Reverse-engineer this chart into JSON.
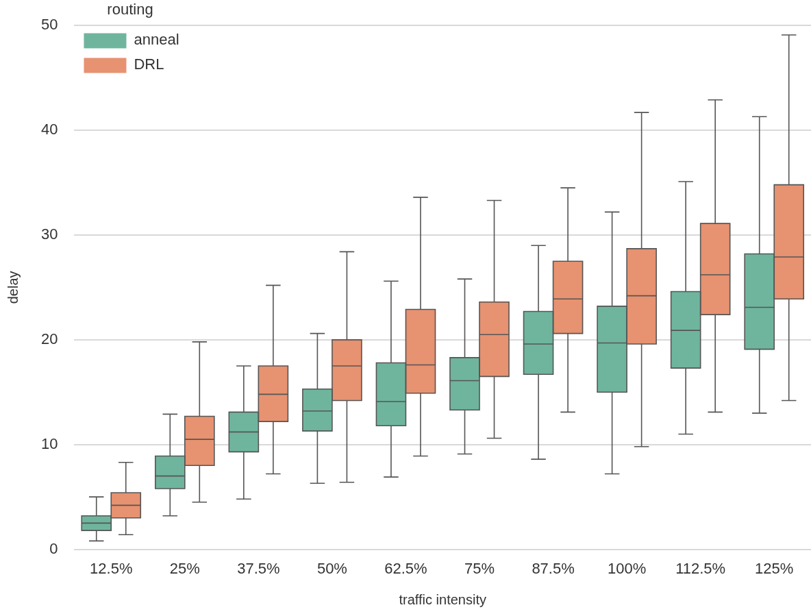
{
  "chart_data": {
    "type": "box",
    "xlabel": "traffic intensity",
    "ylabel": "delay",
    "legend_title": "routing",
    "categories": [
      "12.5%",
      "25%",
      "37.5%",
      "50%",
      "62.5%",
      "75%",
      "87.5%",
      "100%",
      "112.5%",
      "125%"
    ],
    "ylim": [
      0,
      50
    ],
    "yticks": [
      0,
      10,
      20,
      30,
      40,
      50
    ],
    "grid": "y",
    "legend": "top left",
    "series": [
      {
        "name": "anneal",
        "color": "#6fb59e",
        "boxes": [
          {
            "low": 0.8,
            "q1": 1.8,
            "median": 2.5,
            "q3": 3.2,
            "high": 5.0
          },
          {
            "low": 3.2,
            "q1": 5.8,
            "median": 7.0,
            "q3": 8.9,
            "high": 12.9
          },
          {
            "low": 4.8,
            "q1": 9.3,
            "median": 11.2,
            "q3": 13.1,
            "high": 17.5
          },
          {
            "low": 6.3,
            "q1": 11.3,
            "median": 13.2,
            "q3": 15.3,
            "high": 20.6
          },
          {
            "low": 6.9,
            "q1": 11.8,
            "median": 14.1,
            "q3": 17.8,
            "high": 25.6
          },
          {
            "low": 9.1,
            "q1": 13.3,
            "median": 16.1,
            "q3": 18.3,
            "high": 25.8
          },
          {
            "low": 8.6,
            "q1": 16.7,
            "median": 19.6,
            "q3": 22.7,
            "high": 29.0
          },
          {
            "low": 7.2,
            "q1": 15.0,
            "median": 19.7,
            "q3": 23.2,
            "high": 32.2
          },
          {
            "low": 11.0,
            "q1": 17.3,
            "median": 20.9,
            "q3": 24.6,
            "high": 35.1
          },
          {
            "low": 13.0,
            "q1": 19.1,
            "median": 23.1,
            "q3": 28.2,
            "high": 41.3
          }
        ]
      },
      {
        "name": "DRL",
        "color": "#e79271",
        "boxes": [
          {
            "low": 1.4,
            "q1": 3.0,
            "median": 4.2,
            "q3": 5.4,
            "high": 8.3
          },
          {
            "low": 4.5,
            "q1": 8.0,
            "median": 10.5,
            "q3": 12.7,
            "high": 19.8
          },
          {
            "low": 7.2,
            "q1": 12.2,
            "median": 14.8,
            "q3": 17.5,
            "high": 25.2
          },
          {
            "low": 6.4,
            "q1": 14.2,
            "median": 17.5,
            "q3": 20.0,
            "high": 28.4
          },
          {
            "low": 8.9,
            "q1": 14.9,
            "median": 17.6,
            "q3": 22.9,
            "high": 33.6
          },
          {
            "low": 10.6,
            "q1": 16.5,
            "median": 20.5,
            "q3": 23.6,
            "high": 33.3
          },
          {
            "low": 13.1,
            "q1": 20.6,
            "median": 23.9,
            "q3": 27.5,
            "high": 34.5
          },
          {
            "low": 9.8,
            "q1": 19.6,
            "median": 24.2,
            "q3": 28.7,
            "high": 41.7
          },
          {
            "low": 13.1,
            "q1": 22.4,
            "median": 26.2,
            "q3": 31.1,
            "high": 42.9
          },
          {
            "low": 14.2,
            "q1": 23.9,
            "median": 27.9,
            "q3": 34.8,
            "high": 49.1
          }
        ]
      }
    ]
  }
}
